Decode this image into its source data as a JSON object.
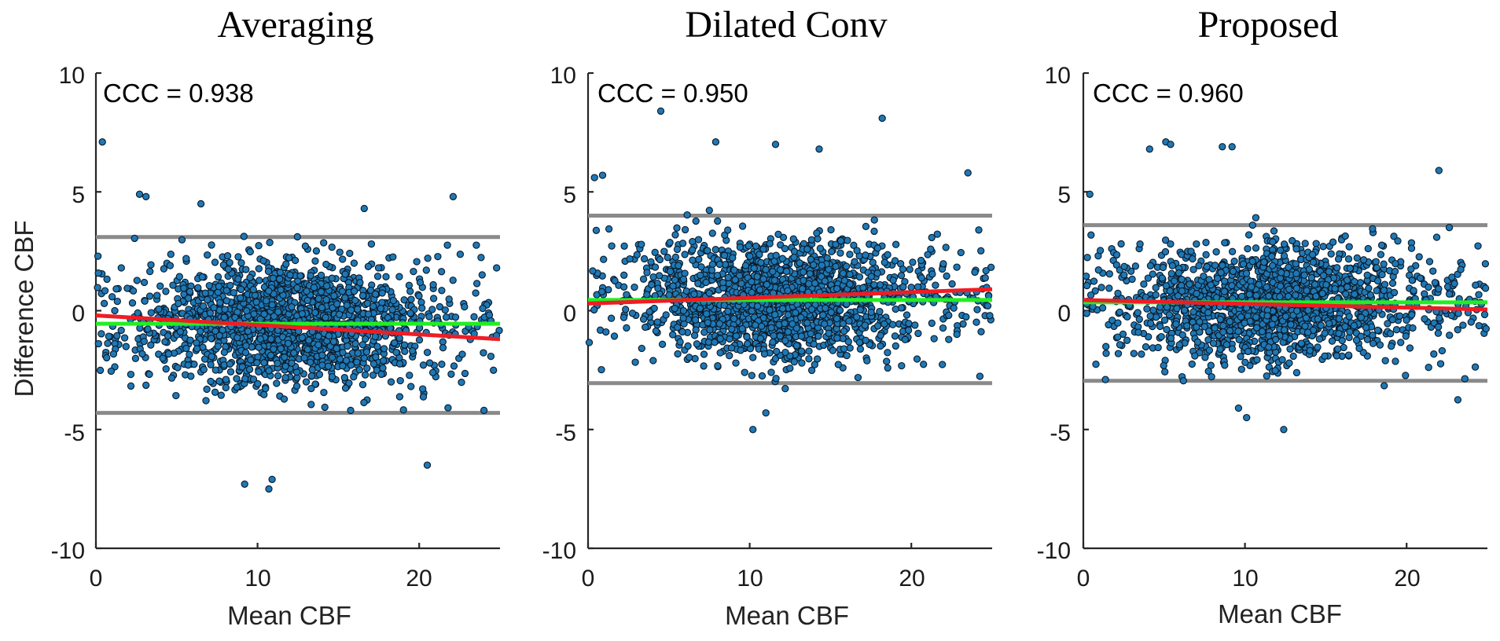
{
  "chart_data": [
    {
      "type": "scatter",
      "title": "Averaging",
      "xlabel": "Mean CBF",
      "ylabel": "Difference  CBF",
      "xlim": [
        0,
        25
      ],
      "ylim": [
        -10,
        10
      ],
      "xticks": [
        "0",
        "10",
        "20"
      ],
      "yticks": [
        "10",
        "5",
        "0",
        "-5",
        "-10"
      ],
      "annotation": "CCC = 0.938",
      "upper_limit": 3.1,
      "lower_limit": -4.3,
      "mean_line": [
        [
          0,
          -0.55
        ],
        [
          25,
          -0.55
        ]
      ],
      "regression_line": [
        [
          0,
          -0.2
        ],
        [
          25,
          -1.2
        ]
      ],
      "point_count": 1700,
      "point_spread_sd": 1.9,
      "outliers": [
        [
          0.4,
          7.1
        ],
        [
          2.7,
          4.9
        ],
        [
          3.1,
          4.8
        ],
        [
          6.5,
          4.5
        ],
        [
          16.6,
          4.3
        ],
        [
          22.1,
          4.8
        ],
        [
          9.2,
          -7.3
        ],
        [
          10.7,
          -7.5
        ],
        [
          10.9,
          -7.1
        ],
        [
          20.5,
          -6.5
        ]
      ]
    },
    {
      "type": "scatter",
      "title": "Dilated Conv",
      "xlabel": "Mean CBF",
      "ylabel": "",
      "xlim": [
        0,
        25
      ],
      "ylim": [
        -10,
        10
      ],
      "xticks": [
        "0",
        "10",
        "20"
      ],
      "yticks": [
        "10",
        "5",
        "0",
        "-5",
        "-10"
      ],
      "annotation": "CCC = 0.950",
      "upper_limit": 4.0,
      "lower_limit": -3.05,
      "mean_line": [
        [
          0,
          0.45
        ],
        [
          25,
          0.45
        ]
      ],
      "regression_line": [
        [
          0,
          0.3
        ],
        [
          25,
          0.9
        ]
      ],
      "point_count": 1700,
      "point_spread_sd": 1.8,
      "outliers": [
        [
          4.5,
          8.4
        ],
        [
          18.2,
          8.1
        ],
        [
          7.9,
          7.1
        ],
        [
          11.6,
          7.0
        ],
        [
          14.3,
          6.8
        ],
        [
          0.4,
          5.6
        ],
        [
          0.9,
          5.7
        ],
        [
          11.0,
          -4.3
        ],
        [
          10.2,
          -5.0
        ],
        [
          23.5,
          5.8
        ]
      ]
    },
    {
      "type": "scatter",
      "title": "Proposed",
      "xlabel": "Mean CBF",
      "ylabel": "",
      "xlim": [
        0,
        25
      ],
      "ylim": [
        -10,
        10
      ],
      "xticks": [
        "0",
        "10",
        "20"
      ],
      "yticks": [
        "10",
        "5",
        "0",
        "-5",
        "-10"
      ],
      "annotation": "CCC = 0.960",
      "upper_limit": 3.6,
      "lower_limit": -2.95,
      "mean_line": [
        [
          0,
          0.35
        ],
        [
          25,
          0.35
        ]
      ],
      "regression_line": [
        [
          0,
          0.45
        ],
        [
          25,
          0.05
        ]
      ],
      "point_count": 1700,
      "point_spread_sd": 1.6,
      "outliers": [
        [
          5.1,
          7.1
        ],
        [
          5.4,
          7.0
        ],
        [
          8.6,
          6.9
        ],
        [
          9.2,
          6.9
        ],
        [
          4.1,
          6.8
        ],
        [
          22.0,
          5.9
        ],
        [
          10.1,
          -4.5
        ],
        [
          12.4,
          -5.0
        ],
        [
          9.6,
          -4.1
        ],
        [
          0.4,
          4.9
        ]
      ]
    }
  ]
}
